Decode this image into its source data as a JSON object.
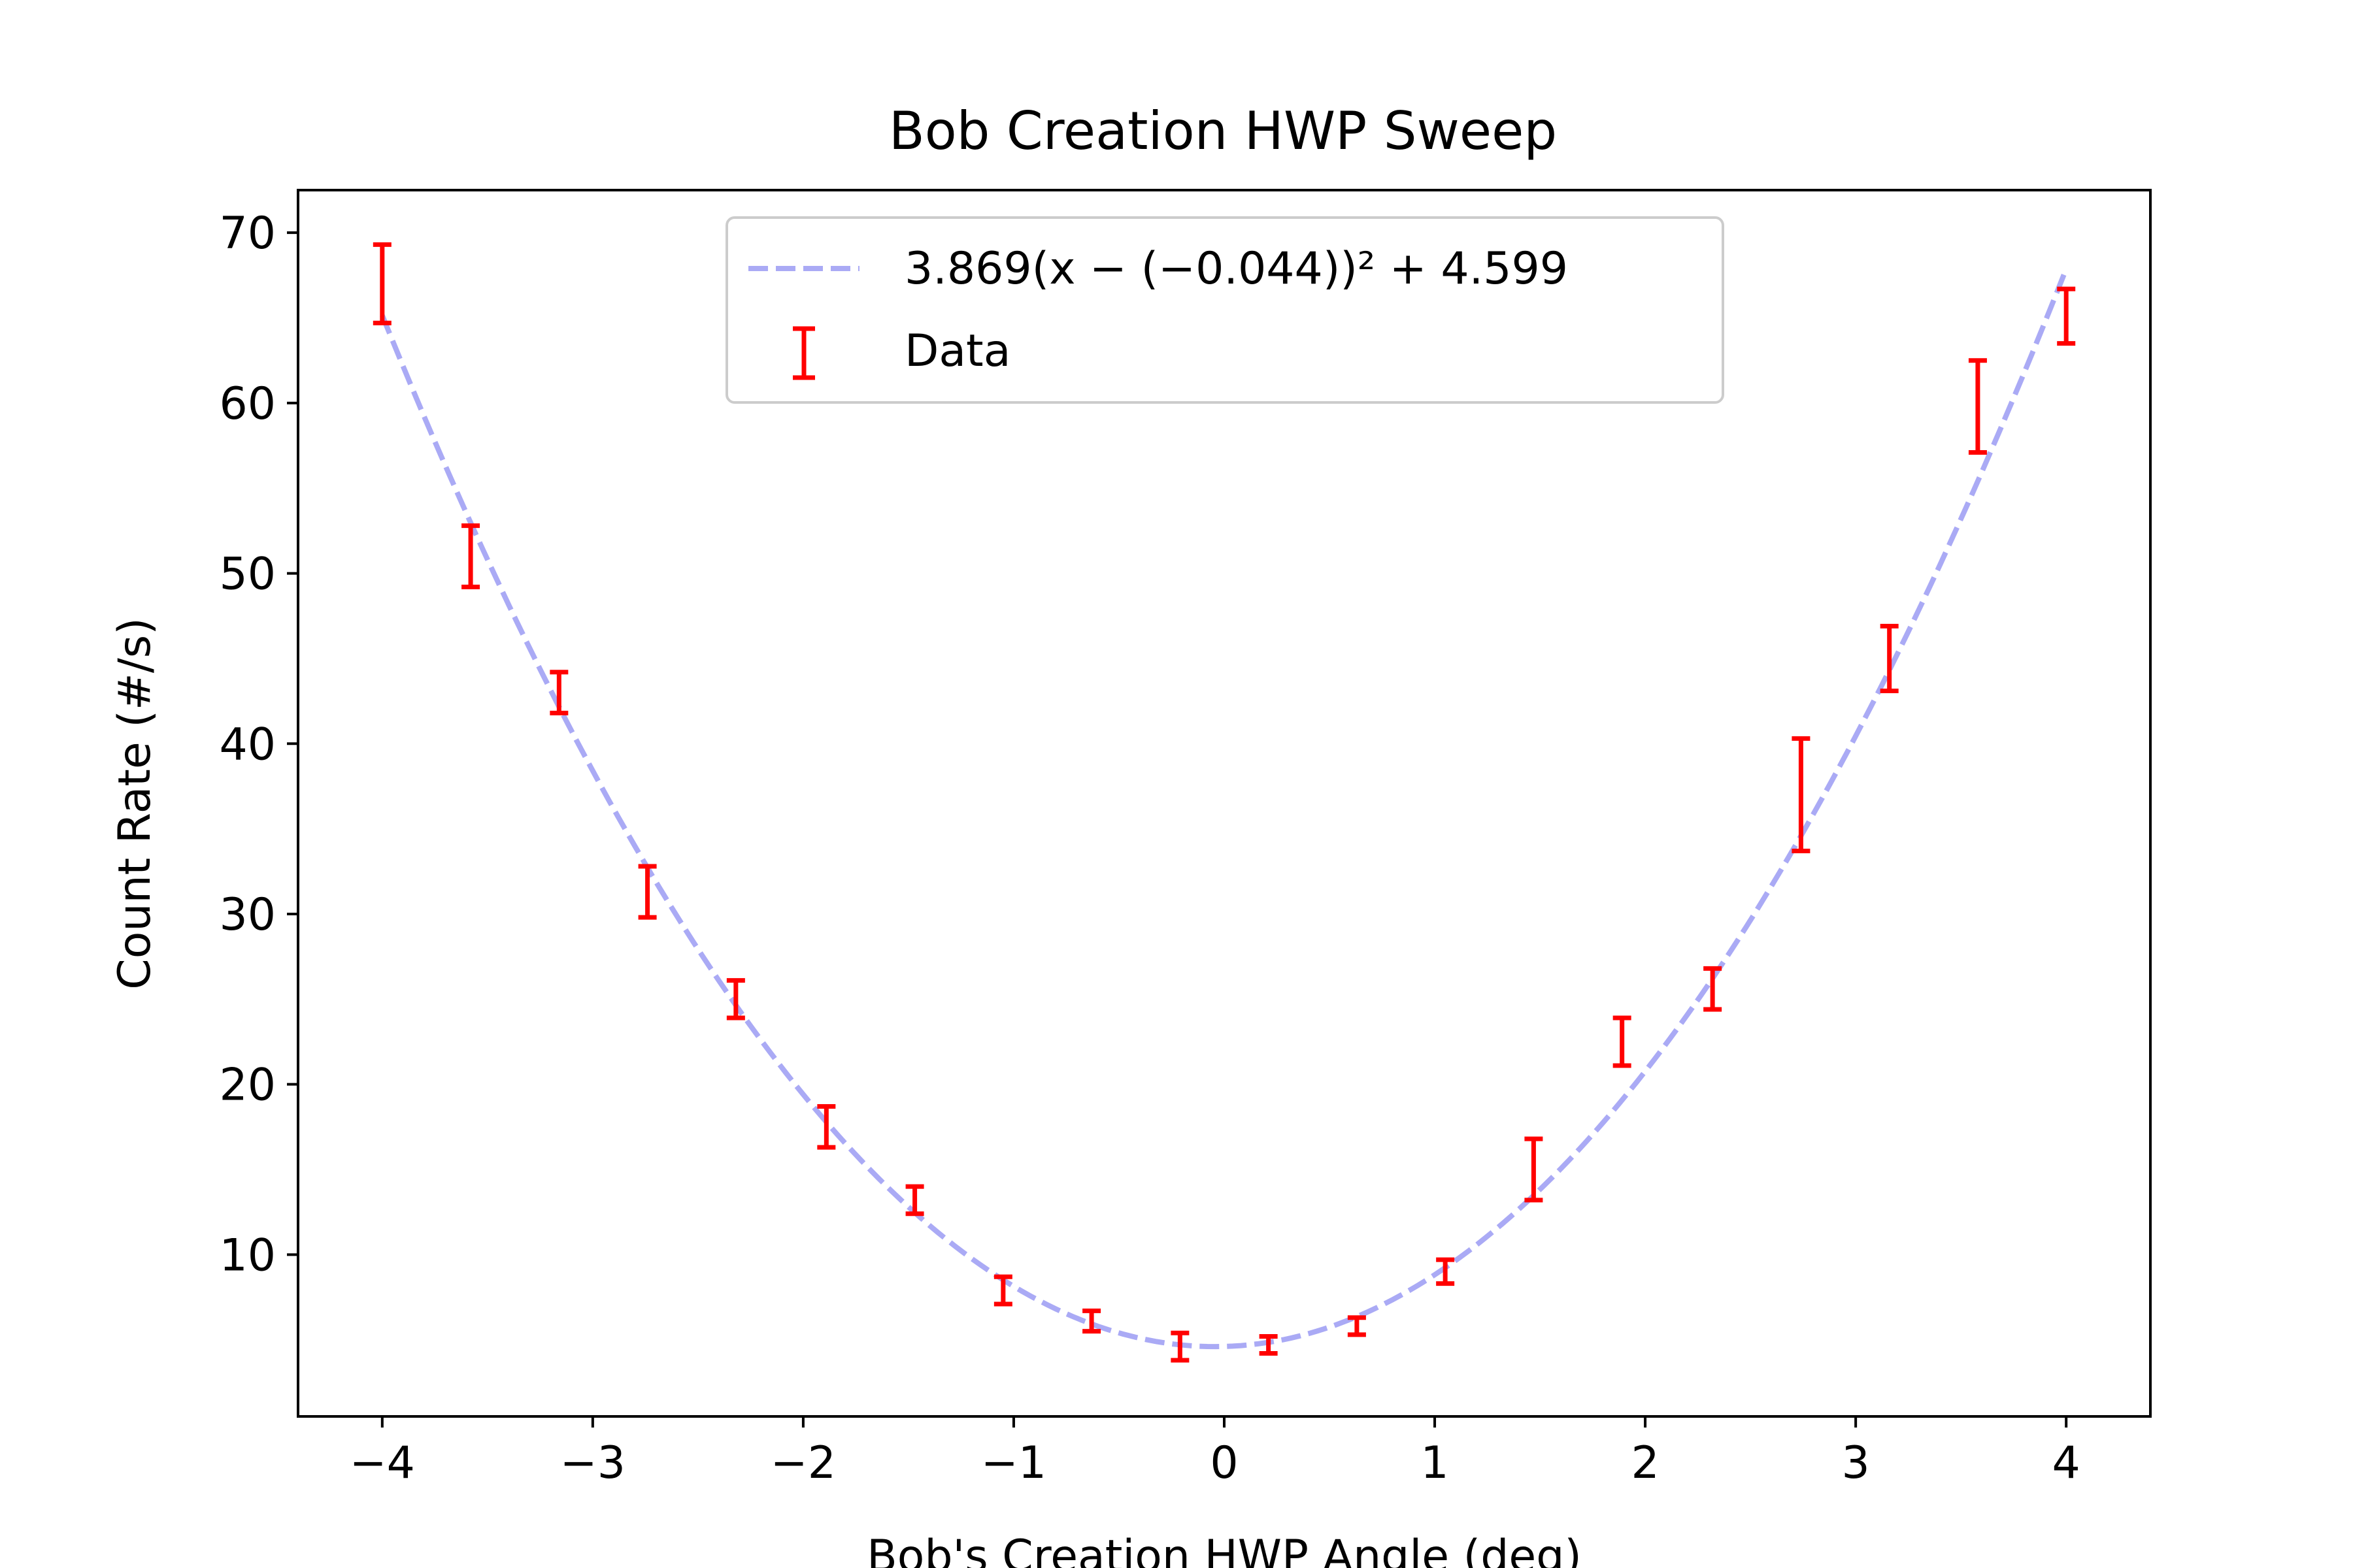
{
  "chart_data": {
    "type": "scatter",
    "title": "Bob Creation HWP Sweep",
    "xlabel": "Bob's Creation HWP Angle (deg)",
    "ylabel": "Count Rate (#/s)",
    "xlim": [
      -4.4,
      4.4
    ],
    "ylim": [
      0.5,
      72.5
    ],
    "xticks": [
      -4,
      -3,
      -2,
      -1,
      0,
      1,
      2,
      3,
      4
    ],
    "xtick_labels": [
      "−4",
      "−3",
      "−2",
      "−1",
      "0",
      "1",
      "2",
      "3",
      "4"
    ],
    "yticks": [
      10,
      20,
      30,
      40,
      50,
      60,
      70
    ],
    "ytick_labels": [
      "10",
      "20",
      "30",
      "40",
      "50",
      "60",
      "70"
    ],
    "grid": false,
    "legend_position": "top-center",
    "fit": {
      "name": "3.869(x − (−0.044))² + 4.599",
      "a": 3.869,
      "x0": -0.044,
      "c": 4.599,
      "color": "#aaaaf5",
      "style": "dashed"
    },
    "series": [
      {
        "name": "Data",
        "color": "#ff0000",
        "x": [
          -4.0,
          -3.58,
          -3.16,
          -2.74,
          -2.32,
          -1.89,
          -1.47,
          -1.05,
          -0.63,
          -0.21,
          0.21,
          0.63,
          1.05,
          1.47,
          1.89,
          2.32,
          2.74,
          3.16,
          3.58,
          4.0
        ],
        "y": [
          67.0,
          51.0,
          43.0,
          31.3,
          25.0,
          17.5,
          13.2,
          7.9,
          6.1,
          4.6,
          4.7,
          5.8,
          9.0,
          15.0,
          22.5,
          25.6,
          37.0,
          45.0,
          59.8,
          65.1
        ],
        "yerr": [
          2.3,
          1.8,
          1.2,
          1.5,
          1.1,
          1.2,
          0.8,
          0.8,
          0.6,
          0.8,
          0.5,
          0.5,
          0.7,
          1.8,
          1.4,
          1.2,
          3.3,
          1.9,
          2.7,
          1.6
        ]
      }
    ]
  }
}
